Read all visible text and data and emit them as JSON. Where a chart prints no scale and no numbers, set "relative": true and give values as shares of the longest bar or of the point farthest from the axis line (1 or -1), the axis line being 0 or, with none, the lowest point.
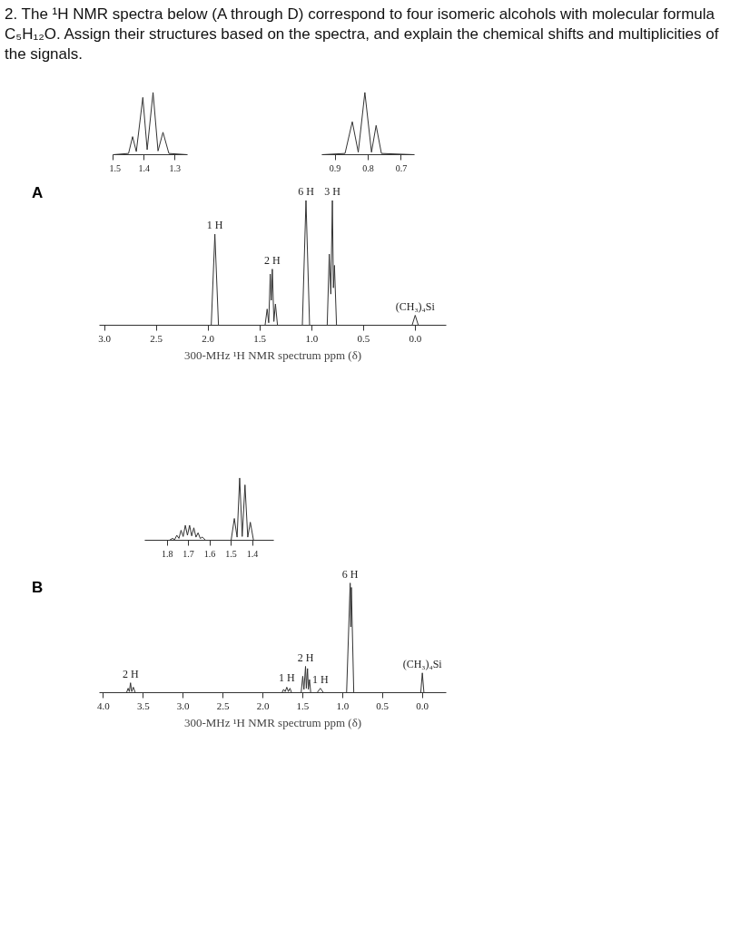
{
  "chart_data": [
    {
      "type": "other",
      "title": "2. The ¹H NMR spectra below (A through D) correspond to four isomeric alcohols with molecular formula C₅H₁₂O. Assign their structures based on the spectra, and explain the chemical shifts and multiplicities of the signals."
    },
    {
      "type": "line",
      "title": "A",
      "relative": true,
      "xlabel": "300-MHz ¹H NMR spectrum ppm (δ)",
      "xlim": [
        3.05,
        -0.3
      ],
      "xticks": [
        {
          "value": 3,
          "label": "3.0"
        },
        2.5,
        {
          "value": 2,
          "label": "2.0"
        },
        1.5,
        {
          "value": 1,
          "label": "1.0"
        },
        0.5,
        {
          "value": 0,
          "label": "0.0"
        }
      ],
      "series": [
        {
          "color": "#333333",
          "x": [
            3.0,
            1.97,
            1.935,
            1.9,
            1.45,
            1.43,
            1.415,
            1.4,
            1.39,
            1.38,
            1.365,
            1.35,
            1.33,
            1.09,
            1.055,
            1.02,
            0.85,
            0.83,
            0.815,
            0.8,
            0.79,
            0.78,
            0.76,
            0.03,
            0.0,
            -0.03,
            -0.1
          ],
          "values": [
            0,
            0,
            0.73,
            0,
            0,
            0.13,
            0.02,
            0.41,
            0.2,
            0.45,
            0.03,
            0.17,
            0,
            0,
            1.0,
            0,
            0,
            0.57,
            0.25,
            1.0,
            0.3,
            0.48,
            0,
            0,
            0.08,
            0,
            0
          ]
        }
      ],
      "annotations": [
        {
          "text": "1 H",
          "x": 1.935,
          "y": 0.73
        },
        {
          "text": "2 H",
          "x": 1.38,
          "y": 0.45
        },
        {
          "text": "6 H",
          "x": 1.055,
          "y": 1.0
        },
        {
          "text": "3 H",
          "x": 0.8,
          "y": 1.0
        },
        {
          "text": "(CH₃)₄Si",
          "x": 0.0,
          "y": 0.08
        }
      ]
    },
    {
      "type": "line",
      "relative": true,
      "xlim": [
        1.5,
        1.26
      ],
      "xticks": [
        1.5,
        1.4,
        1.3
      ],
      "series": [
        {
          "color": "#333333",
          "x": [
            1.5,
            1.45,
            1.437,
            1.425,
            1.404,
            1.39,
            1.371,
            1.355,
            1.339,
            1.32,
            1.26
          ],
          "values": [
            0,
            0.02,
            0.29,
            0.05,
            0.92,
            0.08,
            1.0,
            0.06,
            0.36,
            0.02,
            0
          ]
        }
      ]
    },
    {
      "type": "line",
      "relative": true,
      "xlim": [
        0.94,
        0.66
      ],
      "xticks": [
        0.9,
        0.8,
        0.7
      ],
      "series": [
        {
          "color": "#333333",
          "x": [
            0.94,
            0.87,
            0.848,
            0.83,
            0.81,
            0.79,
            0.776,
            0.76,
            0.66
          ],
          "values": [
            0,
            0.02,
            0.53,
            0.04,
            1.0,
            0.04,
            0.47,
            0.02,
            0
          ]
        }
      ]
    },
    {
      "type": "line",
      "title": "B",
      "relative": true,
      "xlabel": "300-MHz ¹H NMR spectrum ppm (δ)",
      "xlim": [
        4.05,
        -0.3
      ],
      "xticks": [
        {
          "value": 4,
          "label": "4.0"
        },
        3.5,
        {
          "value": 3,
          "label": "3.0"
        },
        2.5,
        {
          "value": 2,
          "label": "2.0"
        },
        1.5,
        {
          "value": 1,
          "label": "1.0"
        },
        0.5,
        {
          "value": 0,
          "label": "0.0"
        }
      ],
      "series": [
        {
          "color": "#333333",
          "x": [
            4.0,
            3.71,
            3.69,
            3.675,
            3.66,
            3.645,
            3.625,
            3.6,
            1.76,
            1.74,
            1.72,
            1.7,
            1.68,
            1.66,
            1.64,
            1.52,
            1.5,
            1.485,
            1.465,
            1.455,
            1.44,
            1.43,
            1.415,
            1.4,
            1.32,
            1.28,
            1.24,
            0.95,
            0.905,
            0.897,
            0.89,
            0.86,
            0.02,
            0.0,
            -0.02,
            -0.13
          ],
          "values": [
            0,
            0,
            0.04,
            0.01,
            0.09,
            0.01,
            0.05,
            0,
            0,
            0.03,
            0.01,
            0.05,
            0.01,
            0.04,
            0,
            0,
            0.15,
            0.03,
            0.24,
            0.04,
            0.22,
            0.03,
            0.12,
            0,
            0,
            0.04,
            0,
            0,
            1.0,
            0.6,
            0.96,
            0,
            0,
            0.18,
            0,
            0
          ]
        }
      ],
      "annotations": [
        {
          "text": "2 H",
          "x": 3.66,
          "y": 0.09
        },
        {
          "text": "1 H",
          "x": 1.7,
          "y": 0.05
        },
        {
          "text": "2 H",
          "x": 1.465,
          "y": 0.24
        },
        {
          "text": "1 H",
          "x": 1.28,
          "y": 0.04
        },
        {
          "text": "6 H",
          "x": 0.905,
          "y": 1.0
        },
        {
          "text": "(CH₃)₄Si",
          "x": 0.0,
          "y": 0.18
        }
      ]
    },
    {
      "type": "line",
      "relative": true,
      "xlim": [
        1.905,
        1.3
      ],
      "xticks": [
        1.8,
        1.7,
        1.6,
        1.5,
        1.4
      ],
      "series": [
        {
          "color": "#333333",
          "x": [
            1.905,
            1.79,
            1.775,
            1.765,
            1.755,
            1.745,
            1.735,
            1.725,
            1.715,
            1.705,
            1.695,
            1.685,
            1.675,
            1.665,
            1.655,
            1.645,
            1.635,
            1.62,
            1.5,
            1.485,
            1.472,
            1.46,
            1.448,
            1.435,
            1.422,
            1.41,
            1.395,
            1.3
          ],
          "values": [
            0,
            0,
            0.03,
            0.01,
            0.08,
            0.03,
            0.16,
            0.06,
            0.24,
            0.08,
            0.24,
            0.07,
            0.2,
            0.05,
            0.12,
            0.03,
            0.05,
            0,
            0,
            0.35,
            0.05,
            1.0,
            0.06,
            0.89,
            0.05,
            0.29,
            0,
            0
          ]
        }
      ]
    }
  ]
}
